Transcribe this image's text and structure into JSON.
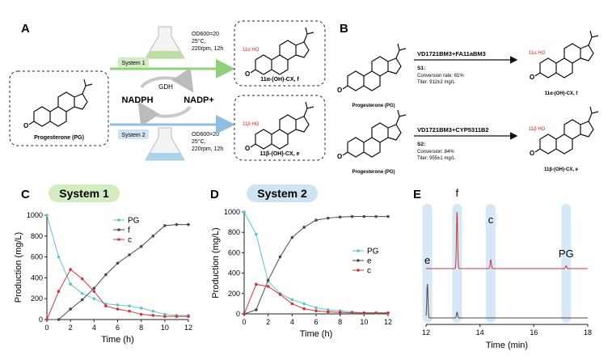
{
  "panels": {
    "A": "A",
    "B": "B",
    "C": "C",
    "D": "D",
    "E": "E"
  },
  "panelA": {
    "start_label": "Progesterone (PG)",
    "system1_label": "System 1",
    "system2_label": "System 2",
    "conditions": [
      "OD600=20",
      "25°C,",
      "220rpm, 12h"
    ],
    "gdh": "GDH",
    "nadph": "NADPH",
    "nadp": "NADP+",
    "product1_label": "11α-(OH)-CX, f",
    "product2_label": "11β-(OH)-CX, e",
    "product1_oh": "11α HO",
    "product2_oh": "11β HO"
  },
  "panelB": {
    "row1": {
      "substrate": "Progesterone (PG)",
      "enzyme": "VD1721BM3+FA11aBM3",
      "tag": "S1:",
      "line1": "Conversion rate: 81%",
      "line2": "Titer: 912±2 mg/L",
      "product": "11α-(OH)-CX, f",
      "oh": "11α HO"
    },
    "row2": {
      "substrate": "Progesterone (PG)",
      "enzyme": "VD1721BM3+CYP5311B2",
      "tag": "S2:",
      "line1": "Conversion: 84%",
      "line2": "Titer: 955±1 mg/L",
      "product": "11β-(OH)-CX, e",
      "oh": "11β HO"
    }
  },
  "colors": {
    "pg": "#5fc4cf",
    "f": "#4a4a4a",
    "e": "#4a4a4a",
    "c": "#c8383b",
    "system1_bg": "#d4ecc2",
    "system2_bg": "#cfe3f1",
    "arrow1": "#8fd17a",
    "arrow2": "#8fbfe0",
    "highlight": "#cfe3f3"
  },
  "chart_data": [
    {
      "id": "C",
      "type": "line",
      "title": "System 1",
      "xlabel": "Time (h)",
      "ylabel": "Production (mg/L)",
      "xlim": [
        0,
        12
      ],
      "ylim": [
        0,
        1000
      ],
      "xticks": [
        0,
        2,
        4,
        6,
        8,
        10,
        12
      ],
      "yticks": [
        0,
        200,
        400,
        600,
        800,
        1000
      ],
      "legend_position": "top-center",
      "series": [
        {
          "name": "PG",
          "color_key": "pg",
          "x": [
            0,
            1,
            2,
            3,
            4,
            5,
            6,
            7,
            8,
            9,
            10,
            11,
            12
          ],
          "y": [
            1000,
            600,
            340,
            250,
            200,
            150,
            140,
            130,
            110,
            80,
            50,
            40,
            40
          ]
        },
        {
          "name": "f",
          "color_key": "f",
          "x": [
            0,
            1,
            2,
            3,
            4,
            5,
            6,
            7,
            8,
            9,
            10,
            11,
            12
          ],
          "y": [
            0,
            0,
            100,
            190,
            300,
            430,
            540,
            620,
            700,
            800,
            900,
            910,
            910
          ]
        },
        {
          "name": "c",
          "color_key": "c",
          "x": [
            0,
            1,
            2,
            3,
            4,
            5,
            6,
            7,
            8,
            9,
            10,
            11,
            12
          ],
          "y": [
            0,
            270,
            480,
            390,
            270,
            130,
            100,
            80,
            50,
            40,
            30,
            30,
            30
          ]
        }
      ]
    },
    {
      "id": "D",
      "type": "line",
      "title": "System 2",
      "xlabel": "Time (h)",
      "ylabel": "Production (mg/L)",
      "xlim": [
        0,
        12
      ],
      "ylim": [
        0,
        1000
      ],
      "xticks": [
        0,
        2,
        4,
        6,
        8,
        10,
        12
      ],
      "yticks": [
        0,
        200,
        400,
        600,
        800,
        1000
      ],
      "legend_position": "right",
      "series": [
        {
          "name": "PG",
          "color_key": "pg",
          "x": [
            0,
            1,
            2,
            3,
            4,
            5,
            6,
            7,
            8,
            9,
            10,
            11,
            12
          ],
          "y": [
            1000,
            780,
            320,
            200,
            140,
            100,
            60,
            40,
            30,
            20,
            10,
            10,
            10
          ]
        },
        {
          "name": "e",
          "color_key": "e",
          "x": [
            0,
            1,
            2,
            3,
            4,
            5,
            6,
            7,
            8,
            9,
            10,
            11,
            12
          ],
          "y": [
            0,
            40,
            330,
            560,
            750,
            850,
            920,
            940,
            950,
            955,
            955,
            955,
            955
          ]
        },
        {
          "name": "c",
          "color_key": "c",
          "x": [
            0,
            1,
            2,
            3,
            4,
            5,
            6,
            7,
            8,
            9,
            10,
            11,
            12
          ],
          "y": [
            0,
            290,
            270,
            190,
            100,
            50,
            30,
            20,
            15,
            10,
            10,
            10,
            10
          ]
        }
      ]
    },
    {
      "id": "E",
      "type": "line",
      "title": "",
      "xlabel": "Time (min)",
      "ylabel": "",
      "xlim": [
        12,
        18
      ],
      "xticks": [
        12,
        14,
        16,
        18
      ],
      "peak_labels": [
        {
          "text": "e",
          "x": 12.05
        },
        {
          "text": "f",
          "x": 13.15
        },
        {
          "text": "c",
          "x": 14.4
        },
        {
          "text": "PG",
          "x": 17.2
        }
      ],
      "highlight_bands": [
        12.05,
        13.15,
        14.4,
        17.2
      ],
      "series": [
        {
          "name": "System 1 trace",
          "color_key": "c",
          "baseline": 1,
          "peaks": [
            {
              "x": 13.15,
              "h": 10
            },
            {
              "x": 14.4,
              "h": 1.6
            },
            {
              "x": 17.2,
              "h": 0.5
            }
          ]
        },
        {
          "name": "System 2 trace",
          "color_key": "e",
          "baseline": 0,
          "peaks": [
            {
              "x": 12.05,
              "h": 6
            },
            {
              "x": 13.15,
              "h": 1
            }
          ]
        }
      ]
    }
  ]
}
